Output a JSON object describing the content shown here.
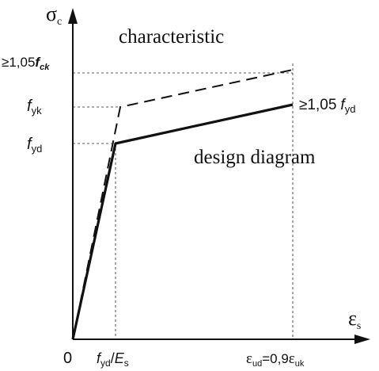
{
  "axes": {
    "y_symbol": "σ",
    "y_subscript": "c",
    "x_symbol": "ε",
    "x_subscript": "s",
    "origin_label": "0"
  },
  "y_labels": {
    "top_prefix": "≥1,05",
    "top_var": "f",
    "top_sub": "ck",
    "fyk_var": "f",
    "fyk_sub": "yk",
    "fyd_var": "f",
    "fyd_sub": "yd"
  },
  "x_labels": {
    "elastic_num_var": "f",
    "elastic_num_sub": "yd",
    "elastic_slash": "/",
    "elastic_den_var": "E",
    "elastic_den_sub": "s",
    "ultimate_var": "ε",
    "ultimate_sub": "ud",
    "ultimate_eq": "=0,9",
    "ultimate_var2": "ε",
    "ultimate_sub2": "uk"
  },
  "annotations": {
    "characteristic": "characteristic",
    "design": "design diagram",
    "right_prefix": "≥1,05",
    "right_var": "f",
    "right_sub": "yd"
  },
  "colors": {
    "ink": "#111111",
    "background": "#ffffff"
  }
}
